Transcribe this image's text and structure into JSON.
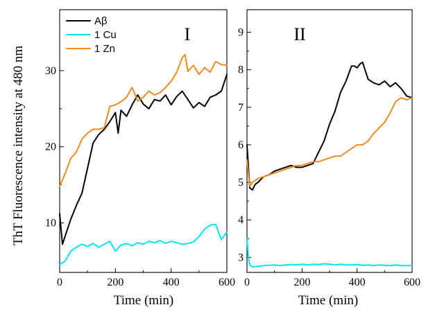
{
  "chart_data": {
    "ylabel": "ThT Fluorescence intensity at 480 nm",
    "colors": {
      "Abeta": "#000000",
      "Cu": "#00e5ee",
      "Zn": "#f28a1c"
    },
    "legend": {
      "placement": "top-left of panel I",
      "entries": [
        {
          "key": "Abeta",
          "label": "Aβ"
        },
        {
          "key": "Cu",
          "label": "1 Cu"
        },
        {
          "key": "Zn",
          "label": "1 Zn"
        }
      ]
    },
    "panels": [
      {
        "type": "line",
        "panel_label": "I",
        "xlabel": "Time (min)",
        "xlim": [
          0,
          600
        ],
        "ylim": [
          3.5,
          38
        ],
        "xticks": [
          0,
          200,
          400,
          600
        ],
        "yticks": [
          10,
          20,
          30
        ],
        "series": [
          {
            "key": "Abeta",
            "name": "Aβ",
            "x": [
              0,
              10,
              20,
              40,
              60,
              80,
              100,
              120,
              140,
              160,
              180,
              200,
              210,
              220,
              240,
              260,
              280,
              300,
              320,
              340,
              360,
              380,
              400,
              420,
              440,
              460,
              480,
              500,
              520,
              540,
              560,
              580,
              600
            ],
            "y": [
              11.2,
              7.2,
              8.3,
              10.5,
              12.3,
              13.9,
              17.2,
              20.5,
              21.6,
              22.3,
              23.3,
              24.5,
              21.8,
              24.8,
              24.0,
              25.5,
              26.8,
              25.6,
              25.0,
              26.2,
              26.0,
              26.8,
              25.5,
              26.6,
              27.3,
              26.2,
              25.1,
              25.8,
              25.3,
              26.5,
              26.8,
              27.3,
              29.5
            ]
          },
          {
            "key": "Cu",
            "name": "1 Cu",
            "x": [
              0,
              20,
              40,
              60,
              80,
              100,
              120,
              140,
              160,
              180,
              200,
              220,
              240,
              260,
              280,
              300,
              320,
              340,
              360,
              380,
              400,
              420,
              440,
              460,
              480,
              500,
              520,
              540,
              560,
              580,
              600
            ],
            "y": [
              4.5,
              5.0,
              6.3,
              6.8,
              7.2,
              6.9,
              7.3,
              6.8,
              7.2,
              7.6,
              6.3,
              7.1,
              7.3,
              7.0,
              7.4,
              7.2,
              7.6,
              7.4,
              7.7,
              7.3,
              7.6,
              7.4,
              7.2,
              7.3,
              7.5,
              8.2,
              9.2,
              9.7,
              9.8,
              7.8,
              8.8
            ]
          },
          {
            "key": "Zn",
            "name": "1 Zn",
            "x": [
              0,
              20,
              40,
              60,
              80,
              100,
              120,
              140,
              160,
              180,
              200,
              220,
              240,
              260,
              280,
              300,
              320,
              340,
              360,
              380,
              400,
              420,
              440,
              450,
              460,
              480,
              500,
              520,
              540,
              560,
              580,
              600
            ],
            "y": [
              14.8,
              16.5,
              18.5,
              19.3,
              21.0,
              21.8,
              22.3,
              22.3,
              22.5,
              25.3,
              25.5,
              25.9,
              26.5,
              27.8,
              26.0,
              26.5,
              27.3,
              26.8,
              27.1,
              27.8,
              28.6,
              29.8,
              31.7,
              32.1,
              29.9,
              30.7,
              29.5,
              30.4,
              29.8,
              31.2,
              30.8,
              30.7
            ]
          }
        ]
      },
      {
        "type": "line",
        "panel_label": "II",
        "xlabel": "Time (min)",
        "xlim": [
          0,
          600
        ],
        "ylim": [
          2.6,
          9.6
        ],
        "xticks": [
          0,
          200,
          400,
          600
        ],
        "yticks": [
          3,
          4,
          5,
          6,
          7,
          8,
          9
        ],
        "series": [
          {
            "key": "Abeta",
            "name": "Aβ",
            "x": [
              0,
              10,
              20,
              30,
              40,
              60,
              80,
              100,
              120,
              140,
              160,
              180,
              200,
              220,
              240,
              260,
              280,
              300,
              320,
              340,
              360,
              380,
              390,
              400,
              410,
              420,
              440,
              460,
              480,
              500,
              520,
              540,
              560,
              580,
              600
            ],
            "y": [
              6.0,
              4.85,
              4.8,
              4.95,
              5.0,
              5.15,
              5.2,
              5.3,
              5.35,
              5.4,
              5.45,
              5.4,
              5.4,
              5.45,
              5.5,
              5.8,
              6.1,
              6.55,
              6.9,
              7.4,
              7.7,
              8.1,
              8.1,
              8.05,
              8.15,
              8.2,
              7.75,
              7.65,
              7.6,
              7.7,
              7.55,
              7.65,
              7.5,
              7.3,
              7.25
            ]
          },
          {
            "key": "Cu",
            "name": "1 Cu",
            "x": [
              0,
              5,
              10,
              20,
              40,
              60,
              80,
              100,
              120,
              140,
              160,
              180,
              200,
              220,
              240,
              260,
              280,
              300,
              320,
              340,
              360,
              380,
              400,
              420,
              440,
              460,
              480,
              500,
              520,
              540,
              560,
              580,
              600
            ],
            "y": [
              3.5,
              3.0,
              2.8,
              2.75,
              2.76,
              2.78,
              2.79,
              2.8,
              2.78,
              2.8,
              2.81,
              2.8,
              2.82,
              2.8,
              2.82,
              2.81,
              2.83,
              2.82,
              2.8,
              2.82,
              2.8,
              2.8,
              2.81,
              2.79,
              2.8,
              2.78,
              2.8,
              2.79,
              2.78,
              2.8,
              2.78,
              2.78,
              2.79
            ]
          },
          {
            "key": "Zn",
            "name": "1 Zn",
            "x": [
              0,
              10,
              20,
              40,
              60,
              80,
              100,
              120,
              140,
              160,
              180,
              200,
              220,
              240,
              260,
              280,
              300,
              320,
              340,
              360,
              380,
              400,
              420,
              440,
              460,
              480,
              500,
              520,
              540,
              560,
              580,
              600
            ],
            "y": [
              5.6,
              4.9,
              5.0,
              5.1,
              5.15,
              5.2,
              5.25,
              5.3,
              5.35,
              5.4,
              5.45,
              5.45,
              5.5,
              5.55,
              5.55,
              5.6,
              5.65,
              5.7,
              5.7,
              5.8,
              5.9,
              6.0,
              6.0,
              6.1,
              6.3,
              6.45,
              6.6,
              6.85,
              7.15,
              7.25,
              7.2,
              7.25
            ]
          }
        ]
      }
    ]
  }
}
